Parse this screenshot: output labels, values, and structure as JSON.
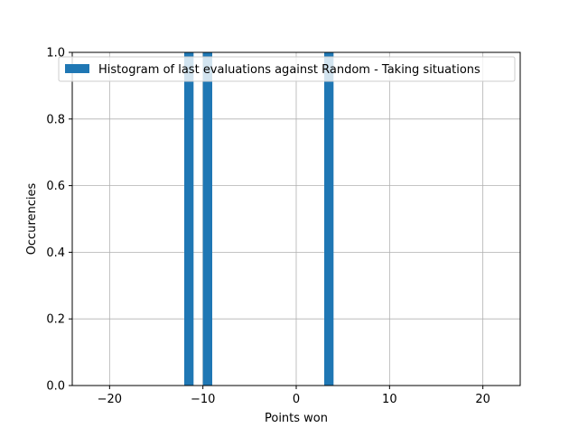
{
  "chart_data": {
    "type": "bar",
    "xlabel": "Points won",
    "ylabel": "Occurencies",
    "xlim": [
      -24,
      24
    ],
    "ylim": [
      0,
      1
    ],
    "xticks": [
      -20,
      -10,
      0,
      10,
      20
    ],
    "xtick_labels": [
      "−20",
      "−10",
      "0",
      "10",
      "20"
    ],
    "yticks": [
      0,
      0.2,
      0.4,
      0.6,
      0.8,
      1.0
    ],
    "ytick_labels": [
      "0.0",
      "0.2",
      "0.4",
      "0.6",
      "0.8",
      "1.0"
    ],
    "grid": true,
    "legend_position": "top-right",
    "series": [
      {
        "name": "Histogram of last evaluations against Random - Taking situations",
        "color": "#1f77b4",
        "bins": [
          {
            "start": -12,
            "end": -11,
            "value": 1.0
          },
          {
            "start": -10,
            "end": -9,
            "value": 1.0
          },
          {
            "start": 3,
            "end": 4,
            "value": 1.0
          }
        ]
      }
    ]
  }
}
